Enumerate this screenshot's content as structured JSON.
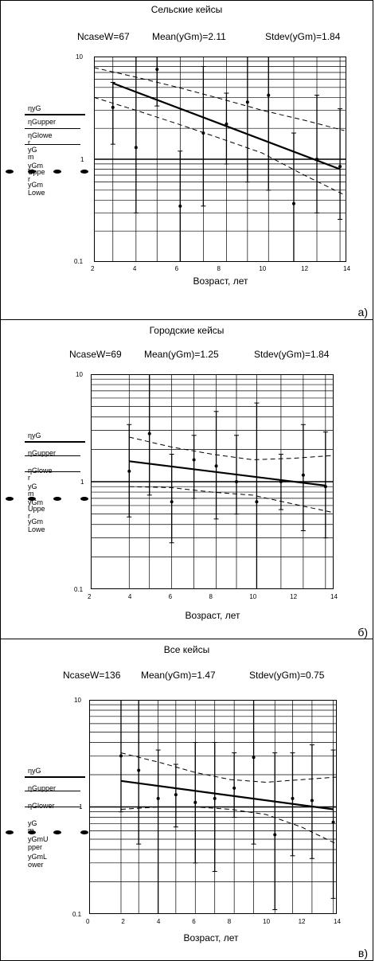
{
  "panels": [
    {
      "title": "Сельские кейсы",
      "ncase": "NcaseW=67",
      "mean": "Mean(yGm)=2.11",
      "stdev": "Stdev(yGm)=1.84",
      "xlabel": "Возраст, лет",
      "label": "а)",
      "legend": [
        "ηyG",
        "ηGupper",
        "ηGlowe",
        "r",
        "yG",
        "m",
        "yGm",
        "Uppe",
        "r",
        "yGm",
        "Lowe"
      ]
    },
    {
      "title": "Городские кейсы",
      "ncase": "NcaseW=69",
      "mean": "Mean(yGm)=1.25",
      "stdev": "Stdev(yGm)=1.84",
      "xlabel": "Возраст, лет",
      "label": "б)",
      "legend": [
        "ηyG",
        "ηGupper",
        "ηGlowe",
        "r",
        "yG",
        "m",
        "yGm",
        "Uppe",
        "r",
        "yGm",
        "Lowe"
      ]
    },
    {
      "title": "Все кейсы",
      "ncase": "NcaseW=136",
      "mean": "Mean(yGm)=1.47",
      "stdev": "Stdev(yGm)=0.75",
      "xlabel": "Возраст, лет",
      "label": "в)",
      "legend": [
        "ηyG",
        "ηGupper",
        "ηGlower",
        "yG",
        "m",
        "yGmU",
        "pper",
        "yGmL",
        "ower"
      ]
    }
  ],
  "chart_data": [
    {
      "type": "scatter",
      "yscale": "log",
      "xlim": [
        2,
        14
      ],
      "ylim": [
        0.1,
        10
      ],
      "xticks": [
        2,
        4,
        6,
        8,
        10,
        12,
        14
      ],
      "yticks": [
        {
          "v": 10,
          "t": "10"
        },
        {
          "v": 1,
          "t": "1"
        },
        {
          "v": 0.1,
          "t": "0.1"
        }
      ],
      "vgrid": [
        2.9,
        4.0,
        5.0,
        6.1,
        7.2,
        8.3,
        9.3,
        10.3,
        11.5,
        12.6,
        13.7
      ],
      "points": [
        {
          "x": 2.9,
          "y": 3.2,
          "lo": 1.4,
          "hi": 5.6
        },
        {
          "x": 4.0,
          "y": 1.3,
          "lo": 0.3,
          "hi": 10
        },
        {
          "x": 5.0,
          "y": 7.5,
          "lo": 3.3,
          "hi": 10
        },
        {
          "x": 6.1,
          "y": 0.35,
          "lo": 0.1,
          "hi": 1.2
        },
        {
          "x": 7.2,
          "y": 1.8,
          "lo": 0.35,
          "hi": 8.0
        },
        {
          "x": 8.3,
          "y": 2.2,
          "lo": 0.9,
          "hi": 4.4
        },
        {
          "x": 9.3,
          "y": 3.6,
          "lo": 0.6,
          "hi": 10
        },
        {
          "x": 10.3,
          "y": 4.2,
          "lo": 0.5,
          "hi": 10
        },
        {
          "x": 11.5,
          "y": 0.37,
          "lo": 0.1,
          "hi": 1.8
        },
        {
          "x": 12.6,
          "y": 1.0,
          "lo": 0.3,
          "hi": 4.2
        },
        {
          "x": 13.7,
          "y": 0.85,
          "lo": 0.26,
          "hi": 3.1
        }
      ],
      "fit": [
        [
          2.9,
          5.5
        ],
        [
          13.7,
          0.8
        ]
      ],
      "upper": [
        [
          2.0,
          7.8
        ],
        [
          4,
          6.3
        ],
        [
          6,
          5.0
        ],
        [
          8,
          3.9
        ],
        [
          10,
          3.0
        ],
        [
          12,
          2.4
        ],
        [
          13.9,
          1.9
        ]
      ],
      "lower": [
        [
          2.0,
          4.0
        ],
        [
          4,
          3.0
        ],
        [
          6,
          2.2
        ],
        [
          8,
          1.6
        ],
        [
          10,
          1.15
        ],
        [
          12,
          0.7
        ],
        [
          13.9,
          0.45
        ]
      ],
      "refline": 1
    },
    {
      "type": "scatter",
      "yscale": "log",
      "xlim": [
        2,
        14
      ],
      "ylim": [
        0.1,
        10
      ],
      "xticks": [
        2,
        4,
        6,
        8,
        10,
        12,
        14
      ],
      "yticks": [
        {
          "v": 10,
          "t": "10"
        },
        {
          "v": 1,
          "t": "1"
        },
        {
          "v": 0.1,
          "t": "0.1"
        }
      ],
      "vgrid": [
        3.9,
        4.9,
        6.0,
        7.1,
        8.2,
        9.2,
        10.2,
        11.4,
        12.5,
        13.6
      ],
      "points": [
        {
          "x": 3.9,
          "y": 1.25,
          "lo": 0.47,
          "hi": 3.4
        },
        {
          "x": 4.9,
          "y": 2.8,
          "lo": 0.75,
          "hi": 10
        },
        {
          "x": 6.0,
          "y": 0.65,
          "lo": 0.27,
          "hi": 1.8
        },
        {
          "x": 7.1,
          "y": 1.6,
          "lo": 0.7,
          "hi": 2.7
        },
        {
          "x": 8.2,
          "y": 1.4,
          "lo": 0.45,
          "hi": 4.5
        },
        {
          "x": 9.2,
          "y": 1.0,
          "lo": 0.5,
          "hi": 2.7
        },
        {
          "x": 10.2,
          "y": 0.65,
          "lo": 0.1,
          "hi": 5.4
        },
        {
          "x": 11.4,
          "y": 1.0,
          "lo": 0.55,
          "hi": 1.8
        },
        {
          "x": 12.5,
          "y": 1.15,
          "lo": 0.35,
          "hi": 3.4
        },
        {
          "x": 13.6,
          "y": 0.9,
          "lo": 0.3,
          "hi": 2.9
        }
      ],
      "fit": [
        [
          3.9,
          1.55
        ],
        [
          13.6,
          0.92
        ]
      ],
      "upper": [
        [
          3.9,
          2.6
        ],
        [
          6,
          2.1
        ],
        [
          8,
          1.8
        ],
        [
          10,
          1.6
        ],
        [
          12,
          1.65
        ],
        [
          13.9,
          1.75
        ]
      ],
      "lower": [
        [
          3.9,
          0.9
        ],
        [
          6,
          0.88
        ],
        [
          8,
          0.8
        ],
        [
          10,
          0.75
        ],
        [
          12,
          0.62
        ],
        [
          13.9,
          0.52
        ]
      ],
      "refline": 1
    },
    {
      "type": "scatter",
      "yscale": "log",
      "xlim": [
        0,
        14
      ],
      "ylim": [
        0.1,
        10
      ],
      "xticks": [
        0,
        2,
        4,
        6,
        8,
        10,
        12,
        14
      ],
      "yticks": [
        {
          "v": 10,
          "t": "10"
        },
        {
          "v": 1,
          "t": "1"
        },
        {
          "v": 0.1,
          "t": "0.1"
        }
      ],
      "vgrid": [
        1.8,
        2.8,
        3.9,
        4.9,
        6.0,
        7.1,
        8.2,
        9.3,
        10.5,
        11.5,
        12.6,
        13.8
      ],
      "points": [
        {
          "x": 1.8,
          "y": 3.0,
          "lo": 0.9,
          "hi": 10
        },
        {
          "x": 2.8,
          "y": 2.2,
          "lo": 0.45,
          "hi": 10
        },
        {
          "x": 3.9,
          "y": 1.2,
          "lo": 0.1,
          "hi": 3.4
        },
        {
          "x": 4.9,
          "y": 1.3,
          "lo": 0.65,
          "hi": 2.5
        },
        {
          "x": 6.0,
          "y": 1.1,
          "lo": 0.3,
          "hi": 4.0
        },
        {
          "x": 7.1,
          "y": 1.2,
          "lo": 0.25,
          "hi": 4.0
        },
        {
          "x": 8.2,
          "y": 1.5,
          "lo": 0.8,
          "hi": 3.2
        },
        {
          "x": 9.3,
          "y": 2.9,
          "lo": 0.45,
          "hi": 10
        },
        {
          "x": 10.5,
          "y": 0.55,
          "lo": 0.11,
          "hi": 3.2
        },
        {
          "x": 11.5,
          "y": 1.2,
          "lo": 0.35,
          "hi": 3.2
        },
        {
          "x": 12.6,
          "y": 1.15,
          "lo": 0.33,
          "hi": 3.8
        },
        {
          "x": 13.8,
          "y": 0.72,
          "lo": 0.14,
          "hi": 3.4
        }
      ],
      "fit": [
        [
          1.8,
          1.75
        ],
        [
          13.8,
          0.95
        ]
      ],
      "upper": [
        [
          1.8,
          3.2
        ],
        [
          4,
          2.6
        ],
        [
          6,
          2.1
        ],
        [
          8,
          1.8
        ],
        [
          10,
          1.7
        ],
        [
          12,
          1.8
        ],
        [
          14,
          1.9
        ]
      ],
      "lower": [
        [
          1.8,
          0.95
        ],
        [
          4,
          1.0
        ],
        [
          6,
          1.0
        ],
        [
          8,
          0.95
        ],
        [
          10,
          0.85
        ],
        [
          12,
          0.65
        ],
        [
          14,
          0.45
        ]
      ],
      "refline": 1
    }
  ]
}
